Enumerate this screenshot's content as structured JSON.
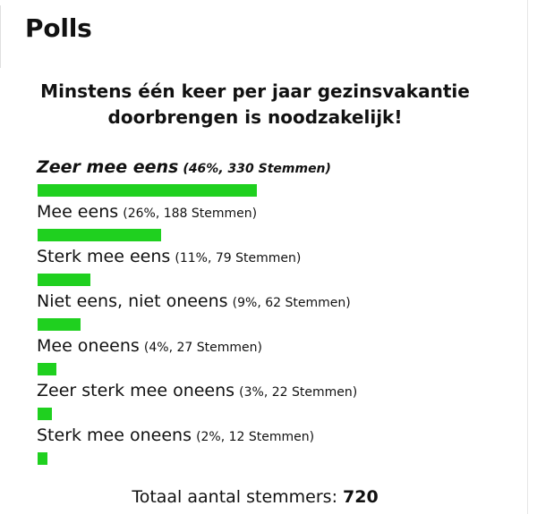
{
  "widget": {
    "heading": "Polls",
    "question": "Minstens één keer per jaar gezinsvakantie doorbrengen is noodzakelijk!",
    "accent_color": "#1fd01f",
    "options": [
      {
        "label": "Zeer mee eens",
        "stats": "(46%, 330 Stemmen)",
        "percent": 46,
        "votes": 330,
        "leading": true
      },
      {
        "label": "Mee eens",
        "stats": "(26%, 188 Stemmen)",
        "percent": 26,
        "votes": 188,
        "leading": false
      },
      {
        "label": "Sterk mee eens",
        "stats": "(11%, 79 Stemmen)",
        "percent": 11,
        "votes": 79,
        "leading": false
      },
      {
        "label": "Niet eens, niet oneens",
        "stats": "(9%, 62 Stemmen)",
        "percent": 9,
        "votes": 62,
        "leading": false
      },
      {
        "label": "Mee oneens",
        "stats": "(4%, 27 Stemmen)",
        "percent": 4,
        "votes": 27,
        "leading": false
      },
      {
        "label": "Zeer sterk mee oneens",
        "stats": "(3%, 22 Stemmen)",
        "percent": 3,
        "votes": 22,
        "leading": false
      },
      {
        "label": "Sterk mee oneens",
        "stats": "(2%, 12 Stemmen)",
        "percent": 2,
        "votes": 12,
        "leading": false
      }
    ],
    "total_label": "Totaal aantal stemmers:",
    "total_value": "720"
  }
}
